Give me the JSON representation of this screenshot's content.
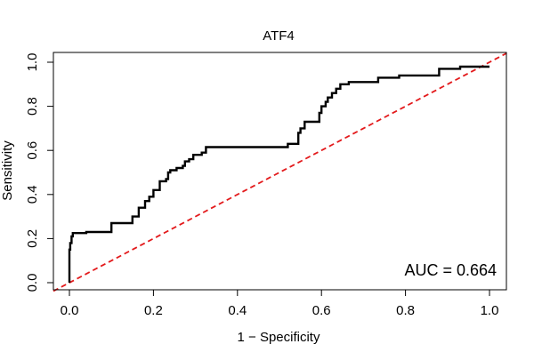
{
  "chart_data": {
    "type": "line",
    "title": "ATF4",
    "xlabel": "1 − Specificity",
    "ylabel": "Sensitivity",
    "xlim": [
      0,
      1
    ],
    "ylim": [
      0,
      1
    ],
    "x_ticks": [
      "0.0",
      "0.2",
      "0.4",
      "0.6",
      "0.8",
      "1.0"
    ],
    "y_ticks": [
      "0.0",
      "0.2",
      "0.4",
      "0.6",
      "0.8",
      "1.0"
    ],
    "grid": false,
    "legend": null,
    "annotation": "AUC = 0.664",
    "colors": {
      "roc_curve": "#000000",
      "reference_line": "#e31a1c",
      "axes": "#000000",
      "background": "#ffffff"
    },
    "series": [
      {
        "style": "solid step line",
        "x": [
          0.0,
          0.0,
          0.002,
          0.002,
          0.005,
          0.005,
          0.008,
          0.008,
          0.04,
          0.04,
          0.1,
          0.1,
          0.15,
          0.15,
          0.165,
          0.165,
          0.18,
          0.18,
          0.19,
          0.19,
          0.2,
          0.2,
          0.215,
          0.215,
          0.23,
          0.23,
          0.235,
          0.235,
          0.24,
          0.24,
          0.255,
          0.255,
          0.27,
          0.27,
          0.275,
          0.275,
          0.285,
          0.285,
          0.295,
          0.295,
          0.315,
          0.315,
          0.325,
          0.325,
          0.335,
          0.335,
          0.52,
          0.52,
          0.545,
          0.545,
          0.55,
          0.55,
          0.56,
          0.56,
          0.595,
          0.595,
          0.6,
          0.6,
          0.61,
          0.61,
          0.615,
          0.615,
          0.625,
          0.625,
          0.635,
          0.635,
          0.645,
          0.645,
          0.665,
          0.665,
          0.735,
          0.735,
          0.785,
          0.785,
          0.88,
          0.88,
          0.93,
          0.93,
          1.0
        ],
        "y": [
          0.0,
          0.15,
          0.15,
          0.18,
          0.18,
          0.21,
          0.21,
          0.225,
          0.225,
          0.23,
          0.23,
          0.27,
          0.27,
          0.3,
          0.3,
          0.34,
          0.34,
          0.37,
          0.37,
          0.39,
          0.39,
          0.42,
          0.42,
          0.46,
          0.46,
          0.47,
          0.47,
          0.5,
          0.5,
          0.51,
          0.51,
          0.52,
          0.52,
          0.53,
          0.53,
          0.55,
          0.55,
          0.56,
          0.56,
          0.58,
          0.58,
          0.59,
          0.59,
          0.615,
          0.615,
          0.615,
          0.615,
          0.63,
          0.63,
          0.68,
          0.68,
          0.7,
          0.7,
          0.73,
          0.73,
          0.77,
          0.77,
          0.8,
          0.8,
          0.82,
          0.82,
          0.84,
          0.84,
          0.86,
          0.86,
          0.88,
          0.88,
          0.9,
          0.9,
          0.91,
          0.91,
          0.93,
          0.93,
          0.94,
          0.94,
          0.97,
          0.97,
          0.98,
          0.98
        ]
      },
      {
        "style": "dashed diagonal reference",
        "x": [
          0,
          1
        ],
        "y": [
          0,
          1
        ]
      }
    ]
  }
}
